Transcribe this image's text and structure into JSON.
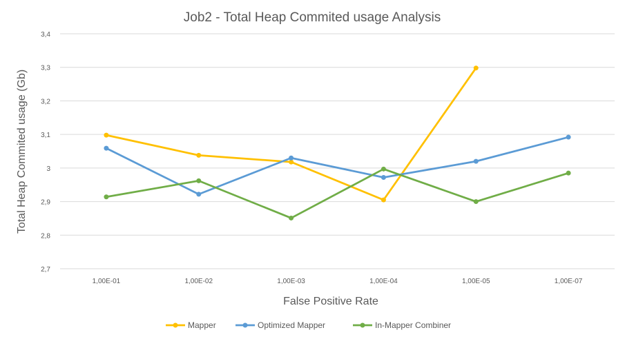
{
  "chart_data": {
    "type": "line",
    "title": "Job2 - Total Heap Commited usage Analysis",
    "xlabel": "False Positive Rate",
    "ylabel": "Total Heap Commited usage (Gb)",
    "categories": [
      "1,00E-01",
      "1,00E-02",
      "1,00E-03",
      "1,00E-04",
      "1,00E-05",
      "1,00E-07"
    ],
    "ylim": [
      2.7,
      3.4
    ],
    "yticks": [
      {
        "value": 2.7,
        "label": "2,7"
      },
      {
        "value": 2.8,
        "label": "2,8"
      },
      {
        "value": 2.9,
        "label": "2,9"
      },
      {
        "value": 3.0,
        "label": "3"
      },
      {
        "value": 3.1,
        "label": "3,1"
      },
      {
        "value": 3.2,
        "label": "3,2"
      },
      {
        "value": 3.3,
        "label": "3,3"
      },
      {
        "value": 3.4,
        "label": "3,4"
      }
    ],
    "grid": true,
    "legend_position": "bottom",
    "series": [
      {
        "name": "Mapper",
        "color": "#FFC000",
        "values": [
          3.098,
          3.038,
          3.018,
          2.905,
          3.298,
          null
        ]
      },
      {
        "name": "Optimized Mapper",
        "color": "#5B9BD5",
        "values": [
          3.059,
          2.922,
          3.03,
          2.972,
          3.02,
          3.092
        ]
      },
      {
        "name": "In-Mapper Combiner",
        "color": "#70AD47",
        "values": [
          2.914,
          2.962,
          2.851,
          2.997,
          2.9,
          2.985
        ]
      }
    ]
  }
}
